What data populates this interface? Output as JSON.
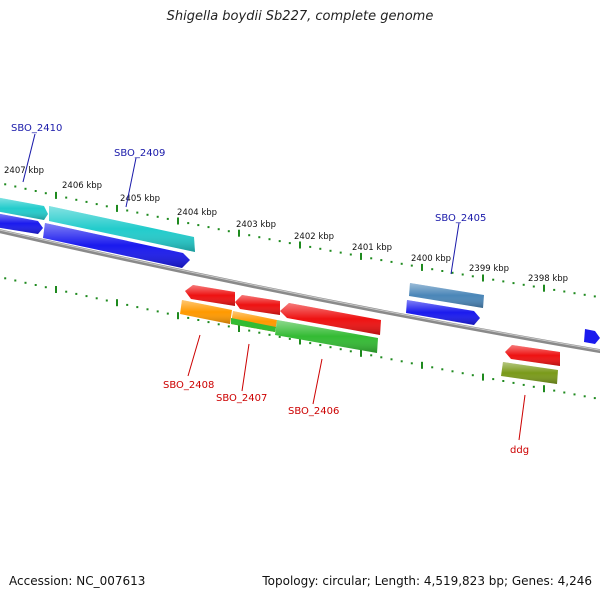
{
  "title": "Shigella boydii Sb227, complete genome",
  "footer": {
    "accession": "Accession: NC_007613",
    "stats": "Topology: circular; Length: 4,519,823 bp; Genes: 4,246"
  },
  "colors": {
    "background": "#ffffff",
    "backbone": "#8a8a8a",
    "ruler_ticks": "#1e8a1e",
    "label_forward": "#1a1aaa",
    "label_reverse": "#cc0000",
    "cds_forward": "#1a1aee",
    "gene_forward": "#22cccc",
    "gene_forward_alt": "#4a86b8",
    "cds_reverse": "#ee1111",
    "gene_reverse_orange": "#ff9900",
    "gene_reverse_green": "#33bb33",
    "gene_reverse_olive": "#7a9a1a"
  },
  "ruler_labels": [
    "2407 kbp",
    "2406 kbp",
    "2405 kbp",
    "2404 kbp",
    "2403 kbp",
    "2402 kbp",
    "2401 kbp",
    "2400 kbp",
    "2399 kbp",
    "2398 kbp"
  ],
  "gene_labels": {
    "forward": [
      "SBO_2410",
      "SBO_2409",
      "SBO_2405"
    ],
    "reverse": [
      "SBO_2408",
      "SBO_2407",
      "SBO_2406",
      "ddg"
    ]
  }
}
